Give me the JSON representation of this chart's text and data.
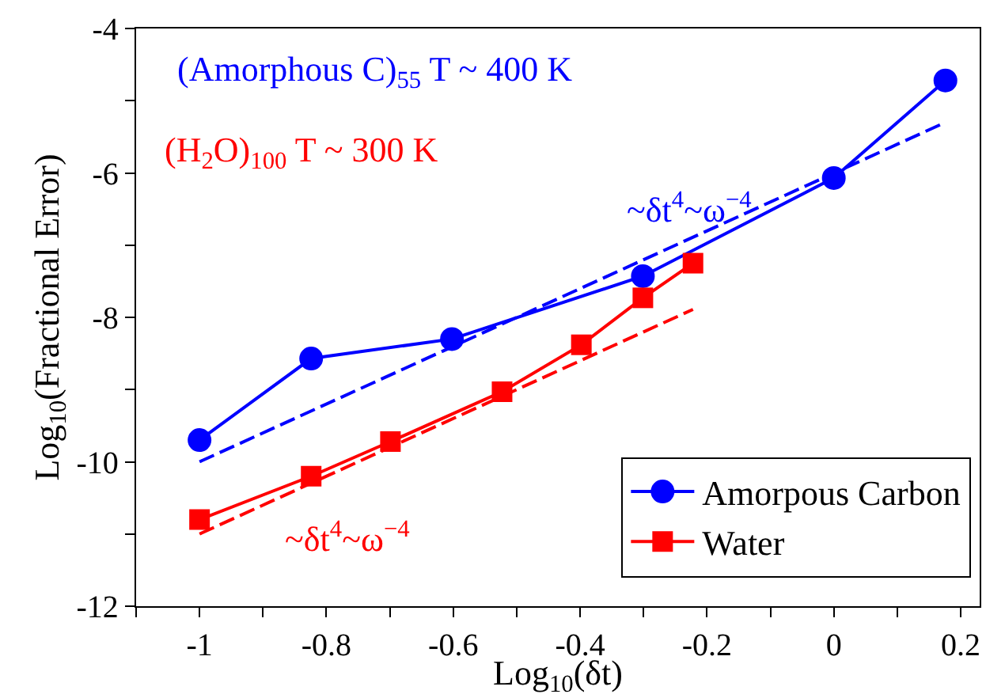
{
  "chart_data": {
    "type": "line",
    "xlabel": "Log$_{10}$(δt)",
    "ylabel": "Log$_{10}$(Fractional Error)",
    "xlim": [
      -1.1,
      0.23
    ],
    "ylim": [
      -12,
      -4
    ],
    "xticks": [
      {
        "value": -1.1,
        "label": null
      },
      -1,
      {
        "value": -0.9,
        "label": null
      },
      -0.8,
      {
        "value": -0.7,
        "label": null
      },
      -0.6,
      {
        "value": -0.5,
        "label": null
      },
      -0.4,
      {
        "value": -0.3,
        "label": null
      },
      -0.2,
      {
        "value": -0.1,
        "label": null
      },
      0,
      {
        "value": 0.1,
        "label": null
      },
      0.2
    ],
    "yticks": [
      -12,
      {
        "value": -11,
        "label": null
      },
      -10,
      {
        "value": -9,
        "label": null
      },
      -8,
      {
        "value": -7,
        "label": null
      },
      -6,
      {
        "value": -5,
        "label": null
      },
      -4
    ],
    "legend": "bottom right",
    "series": [
      {
        "name": "Amorpous Carbon",
        "color": "#0000ff",
        "marker": "circle",
        "line_style": "solid",
        "x": [
          -1,
          -0.824,
          -0.602,
          -0.301,
          0,
          0.176
        ],
        "values": [
          -9.7,
          -8.57,
          -8.3,
          -7.43,
          -6.07,
          -4.72
        ]
      },
      {
        "name": "Water",
        "color": "#ff0000",
        "marker": "square",
        "line_style": "solid",
        "x": [
          -1,
          -0.824,
          -0.699,
          -0.523,
          -0.398,
          -0.301,
          -0.222
        ],
        "values": [
          -10.8,
          -10.2,
          -9.72,
          -9.03,
          -8.38,
          -7.73,
          -7.25
        ]
      },
      {
        "color": "#0000ff",
        "marker": "none",
        "line_style": "dashed",
        "x": [
          -1,
          0.176
        ],
        "values": [
          -10,
          -5.3
        ]
      },
      {
        "color": "#ff0000",
        "marker": "none",
        "line_style": "dashed",
        "x": [
          -1,
          -0.222
        ],
        "values": [
          -11,
          -7.89
        ]
      }
    ],
    "annotations": [
      "(Amorphous C)$_{55}$ T ~ 400 K",
      "(H$_{2}$O)$_{100}$ T ~ 300 K",
      "~δt$^{4}$~ω$^{−4}$",
      "~δt$^{4}$~ω$^{−4}$"
    ]
  }
}
